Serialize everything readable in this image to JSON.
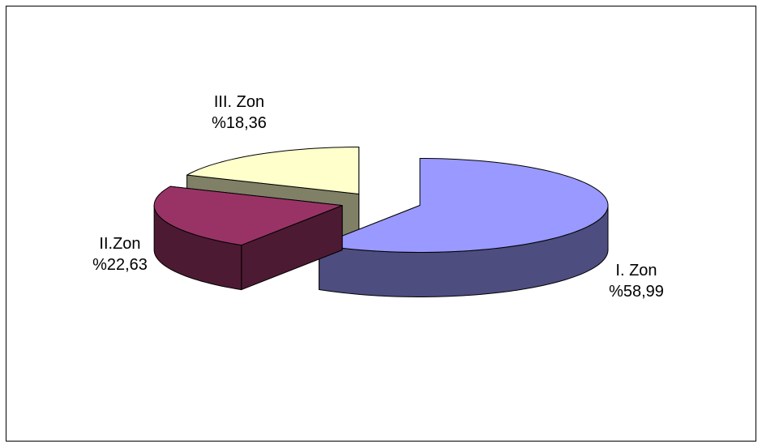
{
  "chart_data": {
    "type": "pie3d",
    "categories": [
      "I. Zon",
      "II.Zon",
      "III. Zon"
    ],
    "values": [
      58.99,
      22.63,
      18.36
    ],
    "value_labels": [
      "%58,99",
      "%22,63",
      "%18,36"
    ],
    "colors": [
      "#9999ff",
      "#993366",
      "#ffffcc"
    ]
  }
}
